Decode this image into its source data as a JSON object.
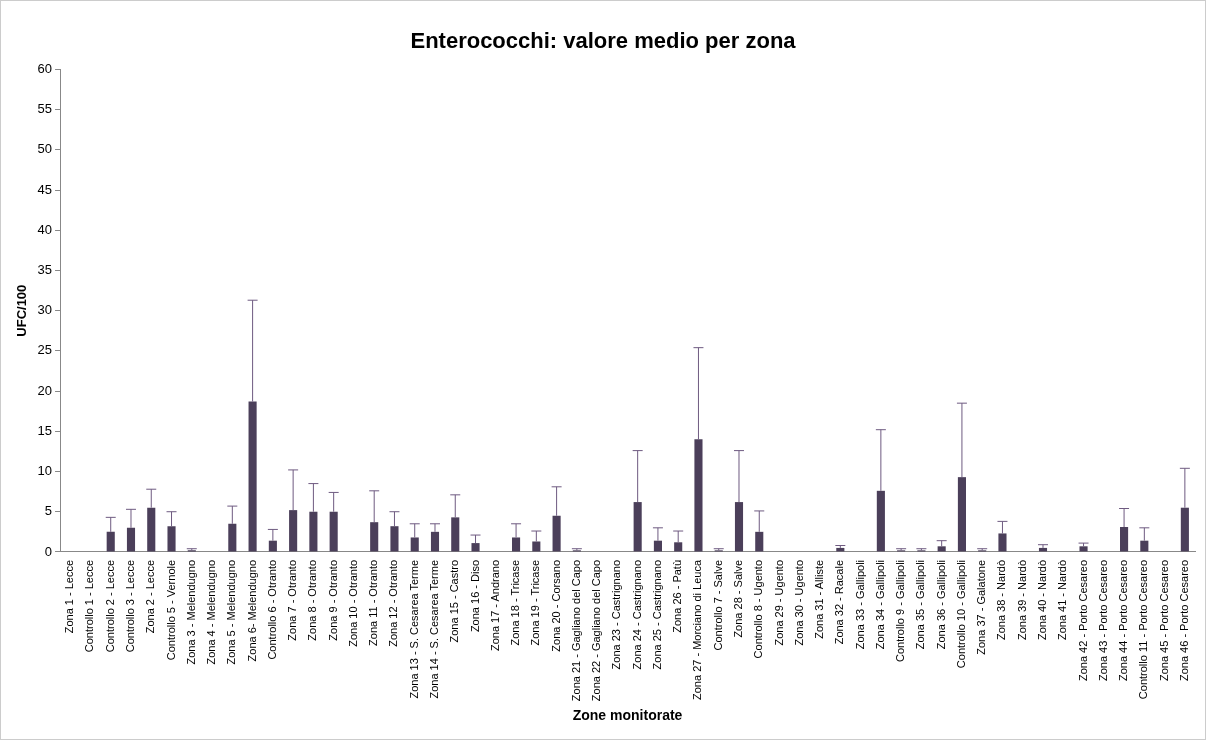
{
  "chart_data": {
    "type": "bar",
    "title": "Enterococchi: valore medio per zona",
    "xlabel": "Zone monitorate",
    "ylabel": "UFC/100",
    "categories": [
      "Zona 1 - Lecce",
      "Controllo 1 - Lecce",
      "Controllo 2 - Lecce",
      "Controllo 3 - Lecce",
      "Zona 2 - Lecce",
      "Controllo 5 - Vernole",
      "Zona 3 - Melendugno",
      "Zona 4 - Melendugno",
      "Zona 5 - Melendugno",
      "Zona 6- Melendugno",
      "Controllo 6 - Otranto",
      "Zona 7 - Otranto",
      "Zona 8 - Otranto",
      "Zona 9 - Otranto",
      "Zona 10 - Otranto",
      "Zona 11 - Otranto",
      "Zona 12 - Otranto",
      "Zona 13 - S. Cesarea Terme",
      "Zona 14 - S. Cesarea Terme",
      "Zona 15 - Castro",
      "Zona 16 - Diso",
      "Zona 17 - Andrano",
      "Zona 18 - Tricase",
      "Zona 19 - Tricase",
      "Zona 20 - Corsano",
      "Zona 21 - Gagliano del Capo",
      "Zona 22 - Gagliano del Capo",
      "Zona 23 - Castrignano",
      "Zona 24 - Castrignano",
      "Zona 25 - Castrignano",
      "Zona 26 - Patù",
      "Zona 27 - Morciano di Leuca",
      "Controllo 7 - Salve",
      "Zona 28 - Salve",
      "Controllo 8 - Ugento",
      "Zona 29 - Ugento",
      "Zona 30 - Ugento",
      "Zona 31 - Alliste",
      "Zona 32 - Racale",
      "Zona 33 - Gallipoli",
      "Zona 34 - Gallipoli",
      "Controllo 9 - Gallipoli",
      "Zona 35 - Gallipoli",
      "Zona 36 - Gallipoli",
      "Controllo 10 - Gallipoli",
      "Zona 37 - Galatone",
      "Zona 38 - Nardò",
      "Zona 39 - Nardò",
      "Zona 40 - Nardò",
      "Zona 41 - Nardò",
      "Zona 42 - Porto Cesareo",
      "Zona 43 - Porto Cesareo",
      "Zona 44 - Porto Cesareo",
      "Controllo 11 - Porto Cesareo",
      "Zona 45 - Porto Cesareo",
      "Zona 46 - Porto Cesareo"
    ],
    "values": [
      0,
      0,
      2.5,
      3,
      5.5,
      3.2,
      0.2,
      0,
      3.5,
      18.7,
      1.4,
      5.2,
      5,
      5,
      0,
      3.7,
      3.2,
      1.8,
      2.5,
      4.3,
      1.1,
      0,
      1.8,
      1.3,
      4.5,
      0.2,
      0,
      0,
      6.2,
      1.4,
      1.2,
      14,
      0.2,
      6.2,
      2.5,
      0,
      0,
      0,
      0.5,
      0,
      7.6,
      0.2,
      0.2,
      0.7,
      9.3,
      0.2,
      2.3,
      0,
      0.5,
      0,
      0.7,
      0,
      3.1,
      1.4,
      0,
      5.5
    ],
    "errors": [
      null,
      null,
      [
        2.5,
        4.3
      ],
      [
        3,
        5.3
      ],
      [
        5.5,
        7.8
      ],
      [
        3.2,
        5
      ],
      [
        0.2,
        0.4
      ],
      null,
      [
        3.5,
        5.7
      ],
      [
        18.7,
        31.3
      ],
      [
        1.4,
        2.8
      ],
      [
        5.2,
        10.2
      ],
      [
        5,
        8.5
      ],
      [
        5,
        7.4
      ],
      null,
      [
        3.7,
        7.6
      ],
      [
        3.2,
        5
      ],
      [
        1.8,
        3.5
      ],
      [
        2.5,
        3.5
      ],
      [
        4.3,
        7.1
      ],
      [
        1.1,
        2.1
      ],
      null,
      [
        1.8,
        3.5
      ],
      [
        1.3,
        2.6
      ],
      [
        4.5,
        8.1
      ],
      [
        0.2,
        0.4
      ],
      null,
      null,
      [
        6.2,
        12.6
      ],
      [
        1.4,
        3
      ],
      [
        1.2,
        2.6
      ],
      [
        14,
        25.4
      ],
      [
        0.2,
        0.4
      ],
      [
        6.2,
        12.6
      ],
      [
        2.5,
        5.1
      ],
      null,
      null,
      null,
      [
        0.5,
        0.8
      ],
      null,
      [
        7.6,
        15.2
      ],
      [
        0.2,
        0.4
      ],
      [
        0.2,
        0.4
      ],
      [
        0.7,
        1.4
      ],
      [
        9.3,
        18.5
      ],
      [
        0.2,
        0.4
      ],
      [
        2.3,
        3.8
      ],
      null,
      [
        0.5,
        0.9
      ],
      null,
      [
        0.7,
        1.1
      ],
      null,
      [
        3.1,
        5.4
      ],
      [
        1.4,
        3
      ],
      null,
      [
        5.5,
        10.4
      ]
    ],
    "color": "#4b3f5a",
    "ylim": [
      0,
      60
    ],
    "yticks": [
      0,
      5,
      10,
      15,
      20,
      25,
      30,
      35,
      40,
      45,
      50,
      55,
      60
    ],
    "grid": false,
    "legend": false
  }
}
